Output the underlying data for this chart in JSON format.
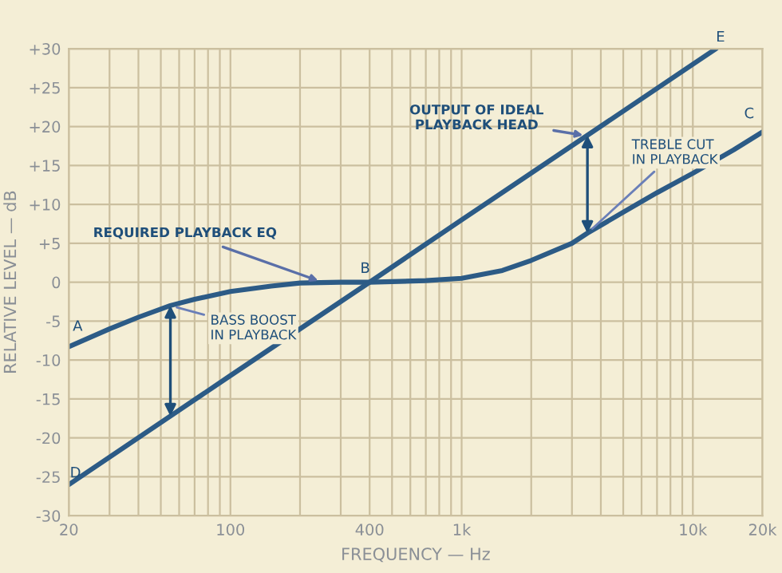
{
  "chart_data": {
    "type": "line",
    "xlabel": "FREQUENCY — Hz",
    "ylabel": "RELATIVE LEVEL — dB",
    "log": "x",
    "series": [
      {
        "color": "#2c5b86",
        "x": [
          20,
          30,
          40,
          55,
          70,
          100,
          150,
          200,
          300,
          400,
          700,
          1000,
          1500,
          2000,
          3000,
          3500,
          5000,
          7000,
          10000,
          15000,
          20000
        ],
        "values": [
          -8.3,
          -6,
          -4.5,
          -3,
          -2.2,
          -1.2,
          -0.5,
          -0.1,
          0,
          0,
          0.2,
          0.5,
          1.5,
          2.8,
          5,
          6.3,
          9,
          11.5,
          14,
          17,
          19.3
        ]
      },
      {
        "color": "#2c5b86",
        "x": [
          20,
          100,
          400,
          1000,
          10000,
          12600
        ],
        "values": [
          -26,
          -12,
          0,
          8,
          28,
          30
        ]
      }
    ],
    "xlim": [
      20,
      20000
    ],
    "xticks": [
      {
        "value": 20,
        "label": "20"
      },
      {
        "value": 30,
        "label": null
      },
      {
        "value": 40,
        "label": null
      },
      {
        "value": 50,
        "label": null
      },
      {
        "value": 60,
        "label": null
      },
      {
        "value": 70,
        "label": null
      },
      {
        "value": 80,
        "label": null
      },
      {
        "value": 90,
        "label": null
      },
      {
        "value": 100,
        "label": "100"
      },
      {
        "value": 200,
        "label": null
      },
      {
        "value": 300,
        "label": null
      },
      {
        "value": 400,
        "label": "400"
      },
      {
        "value": 500,
        "label": null
      },
      {
        "value": 600,
        "label": null
      },
      {
        "value": 700,
        "label": null
      },
      {
        "value": 800,
        "label": null
      },
      {
        "value": 900,
        "label": null
      },
      {
        "value": 1000,
        "label": "1k"
      },
      {
        "value": 2000,
        "label": null
      },
      {
        "value": 3000,
        "label": null
      },
      {
        "value": 4000,
        "label": null
      },
      {
        "value": 5000,
        "label": null
      },
      {
        "value": 6000,
        "label": null
      },
      {
        "value": 7000,
        "label": null
      },
      {
        "value": 8000,
        "label": null
      },
      {
        "value": 9000,
        "label": null
      },
      {
        "value": 10000,
        "label": "10k"
      },
      {
        "value": 20000,
        "label": "20k"
      }
    ],
    "ylim": [
      -30,
      30
    ],
    "yticks": [
      {
        "value": -30,
        "label": "-30"
      },
      {
        "value": -25,
        "label": "-25"
      },
      {
        "value": -20,
        "label": "-20"
      },
      {
        "value": -15,
        "label": "-15"
      },
      {
        "value": -10,
        "label": "-10"
      },
      {
        "value": -5,
        "label": "-5"
      },
      0,
      {
        "value": 5,
        "label": "+5"
      },
      {
        "value": 10,
        "label": "+10"
      },
      {
        "value": 15,
        "label": "+15"
      },
      {
        "value": 20,
        "label": "+20"
      },
      {
        "value": 25,
        "label": "+25"
      },
      {
        "value": 30,
        "label": "+30"
      }
    ],
    "grid": true,
    "annotations": [
      {
        "text": "A",
        "x": 20,
        "y": -8.3
      },
      {
        "text": "B",
        "x": 400,
        "y": 0
      },
      {
        "text": "C",
        "x": 20000,
        "y": 19.3
      },
      {
        "text": "D",
        "x": 20,
        "y": -26
      },
      {
        "text": "E",
        "x": 12600,
        "y": 30
      },
      {
        "text": "REQUIRED PLAYBACK EQ",
        "x": 250,
        "y": 0
      },
      {
        "text": "BASS BOOST\nIN PLAYBACK",
        "x": 55,
        "y": -3
      },
      {
        "text": "OUTPUT OF IDEAL\nPLAYBACK HEAD",
        "x": 3500,
        "y": 18.8
      },
      {
        "text": "TREBLE CUT\nIN PLAYBACK",
        "x": 3500,
        "y": 6.3
      }
    ]
  }
}
